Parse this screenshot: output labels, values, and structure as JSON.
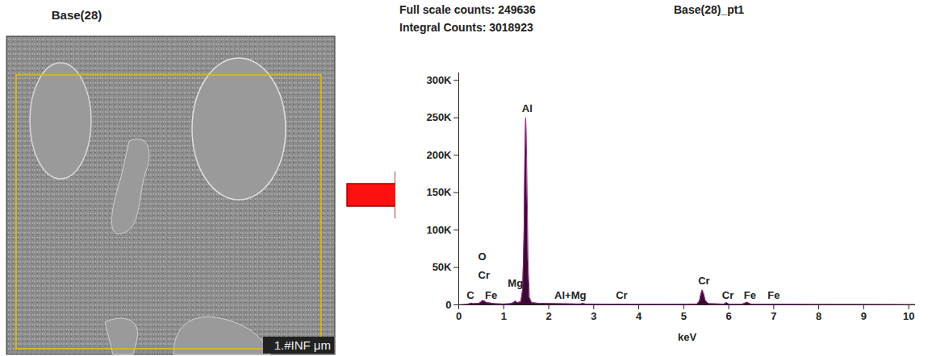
{
  "image_panel": {
    "title": "Base(28)",
    "scale_label": "1.#INF μm"
  },
  "chart_data": {
    "type": "area",
    "title": "Base(28)_pt1",
    "header_lines": [
      "Full scale counts: 249636",
      "Integral Counts: 3018923"
    ],
    "xlabel": "keV",
    "color": "#3a0a33",
    "x": [
      0,
      0.15,
      0.25,
      0.28,
      0.32,
      0.45,
      0.5,
      0.53,
      0.57,
      0.62,
      0.7,
      0.8,
      1.0,
      1.15,
      1.22,
      1.26,
      1.3,
      1.38,
      1.42,
      1.45,
      1.47,
      1.487,
      1.5,
      1.52,
      1.54,
      1.57,
      1.62,
      1.8,
      2.2,
      2.7,
      2.76,
      2.82,
      3.5,
      4.5,
      5.3,
      5.35,
      5.38,
      5.41,
      5.44,
      5.48,
      5.55,
      5.9,
      5.95,
      6.0,
      6.3,
      6.37,
      6.4,
      6.44,
      6.5,
      7.0,
      7.06,
      7.12,
      8,
      9,
      10,
      10.15
    ],
    "values": [
      0,
      500,
      1500,
      2500,
      1500,
      2000,
      4000,
      6000,
      5000,
      3000,
      2500,
      1500,
      1200,
      1500,
      3000,
      5000,
      3000,
      4000,
      20000,
      90000,
      200000,
      249636,
      230000,
      150000,
      60000,
      10000,
      3000,
      2000,
      1500,
      1200,
      1800,
      1200,
      1000,
      900,
      1200,
      5000,
      14000,
      20000,
      16000,
      6000,
      1500,
      1000,
      3000,
      1000,
      900,
      2500,
      3500,
      2500,
      900,
      800,
      1200,
      800,
      600,
      500,
      400,
      400
    ],
    "xlim": [
      0,
      10.15
    ],
    "ylim": [
      0,
      310000
    ],
    "xticks": [
      0,
      1,
      2,
      3,
      4,
      5,
      6,
      7,
      8,
      9,
      10
    ],
    "yticks": [
      0,
      {
        "value": 50000,
        "label": "50K"
      },
      {
        "value": 100000,
        "label": "100K"
      },
      {
        "value": 150000,
        "label": "150K"
      },
      {
        "value": 200000,
        "label": "200K"
      },
      {
        "value": 250000,
        "label": "250K"
      },
      {
        "value": 300000,
        "label": "300K"
      }
    ],
    "annotations": [
      {
        "text": "C",
        "x": 0.26,
        "y": 13000
      },
      {
        "text": "O",
        "x": 0.52,
        "y": 64000
      },
      {
        "text": "Cr",
        "x": 0.56,
        "y": 40000
      },
      {
        "text": "Fe",
        "x": 0.72,
        "y": 13000
      },
      {
        "text": "Mg",
        "x": 1.26,
        "y": 29000
      },
      {
        "text": "Al",
        "x": 1.52,
        "y": 262000
      },
      {
        "text": "Al+Mg",
        "x": 2.48,
        "y": 13000
      },
      {
        "text": "Cr",
        "x": 3.62,
        "y": 13000
      },
      {
        "text": "Cr",
        "x": 5.45,
        "y": 32000
      },
      {
        "text": "Cr",
        "x": 5.98,
        "y": 13000
      },
      {
        "text": "Fe",
        "x": 6.47,
        "y": 13000
      },
      {
        "text": "Fe",
        "x": 7.0,
        "y": 13000
      }
    ]
  }
}
